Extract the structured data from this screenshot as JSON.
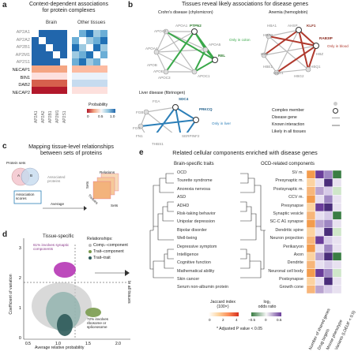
{
  "panels": {
    "a": {
      "label": "a",
      "title": "Context-dependent associations\nfor protein complexes",
      "col_groups": [
        "Brain",
        "Other tissues"
      ],
      "rows": [
        "AP2A1",
        "AP2A2",
        "AP2B1",
        "AP2M1",
        "AP2S1",
        "NECAP1",
        "BIN1",
        "DAB2",
        "NECAP2"
      ],
      "cols": [
        "AP2A1",
        "AP2A2",
        "AP2B1",
        "AP2M1",
        "AP2S1"
      ],
      "legend_title": "Probability",
      "legend_ticks": [
        "0",
        "0.5",
        "1.0"
      ]
    },
    "b": {
      "label": "b",
      "title": "Tissues reveal likely associations for disease genes",
      "crohn_title": "Crohn's disease (chylomicron)",
      "anemia_title": "Anemia (hemoglobin)",
      "liver_title": "Liver disease (fibrinogen)",
      "crohn_genes": [
        "APOA1",
        "APOA2",
        "PTPN2",
        "APOA4",
        "APOA5",
        "REL",
        "APOB",
        "APOC3",
        "APOE",
        "APOC1"
      ],
      "anemia_genes": [
        "HBA1",
        "AHSP",
        "KLF1",
        "HBA2",
        "RAB3IP",
        "HBB",
        "HBQ1",
        "HBZ",
        "HBE1",
        "HBG1",
        "HBG2"
      ],
      "liver_genes": [
        "FGA",
        "FGB",
        "SDC4",
        "PRKCQ",
        "FGG",
        "FN1",
        "SERPINF2",
        "THBS1"
      ],
      "note_colon": "Only in colon",
      "note_blood": "Only in blood",
      "note_liver": "Only in liver",
      "legend": [
        "Complex member",
        "Disease gene",
        "Known interaction",
        "Likely in all tissues"
      ]
    },
    "c": {
      "label": "c",
      "title": "Mapping tissue-level relationships\nbetween sets of proteins",
      "protein_sets": "Protein sets",
      "associated": "Associated\nproteins",
      "assoc_scores": "Association\nscores",
      "average": "Average",
      "relations": "Relations",
      "sets_v": "Sets",
      "sets_h": "Sets",
      "tissues": "Tissues",
      "setA": "A",
      "setB": "B"
    },
    "d": {
      "label": "d",
      "title": "Tissue-specific",
      "top_note": "61% involves synaptic\ncomponents",
      "bottom_note": "72% involves\nribosome or\nspliceosome",
      "rel_title": "Relationships:",
      "rel_items": [
        "Comp.–component",
        "Trait–component",
        "Trait–trait"
      ],
      "in_all": "In all tissues",
      "ylabel": "Coefficient of variation",
      "xlabel": "Average relative probability",
      "xticks": [
        "0.5",
        "1.0",
        "1.5",
        "2.0"
      ],
      "yticks": [
        "0",
        "1",
        "2",
        "3"
      ],
      "colors": {
        "comp": "#bdbdbd",
        "trait_comp": "#7a9b4e",
        "trait_trait": "#2e5b5a",
        "magenta": "#b22ab0"
      }
    },
    "e": {
      "label": "e",
      "title": "Related cellular components enriched with disease genes",
      "left_title": "Brain-specific traits",
      "right_title": "OCD-related components",
      "traits": [
        "OCD",
        "Tourette syndrome",
        "Anorexia nervosa",
        "ASD",
        "ADHD",
        "Risk-taking behavior",
        "Unipolar depression",
        "Bipolar disorder",
        "Well-being",
        "Depressive symptom",
        "Intelligence",
        "Cognitive function",
        "Mathematical ability",
        "Skin cancer",
        "Serum non-albumin protein"
      ],
      "components": [
        "SV m.",
        "Presynaptic m.",
        "Postsynaptic m.",
        "CCV m.",
        "Presynapse",
        "Synaptic vesicle",
        "SC-C A1 synapse",
        "Dendritic spine",
        "Neuron projection",
        "Perikaryon",
        "Axon",
        "Dendrite",
        "Neuronal cell body",
        "Postsynapse",
        "Growth cone"
      ],
      "col_labels": [
        "Number of shared genes",
        "Drug targets",
        "Mouse phenotype",
        "Variants (LOEUF < 0.5)"
      ],
      "jaccard_title": "Jaccard index\n(100×)",
      "jaccard_ticks": [
        "0",
        "2",
        "4"
      ],
      "log2_title": "log₂\nodds ratio",
      "log2_ticks": [
        "−0.5",
        "0",
        "0.5"
      ],
      "pnote": "* Adjusted P value < 0.05"
    }
  }
}
